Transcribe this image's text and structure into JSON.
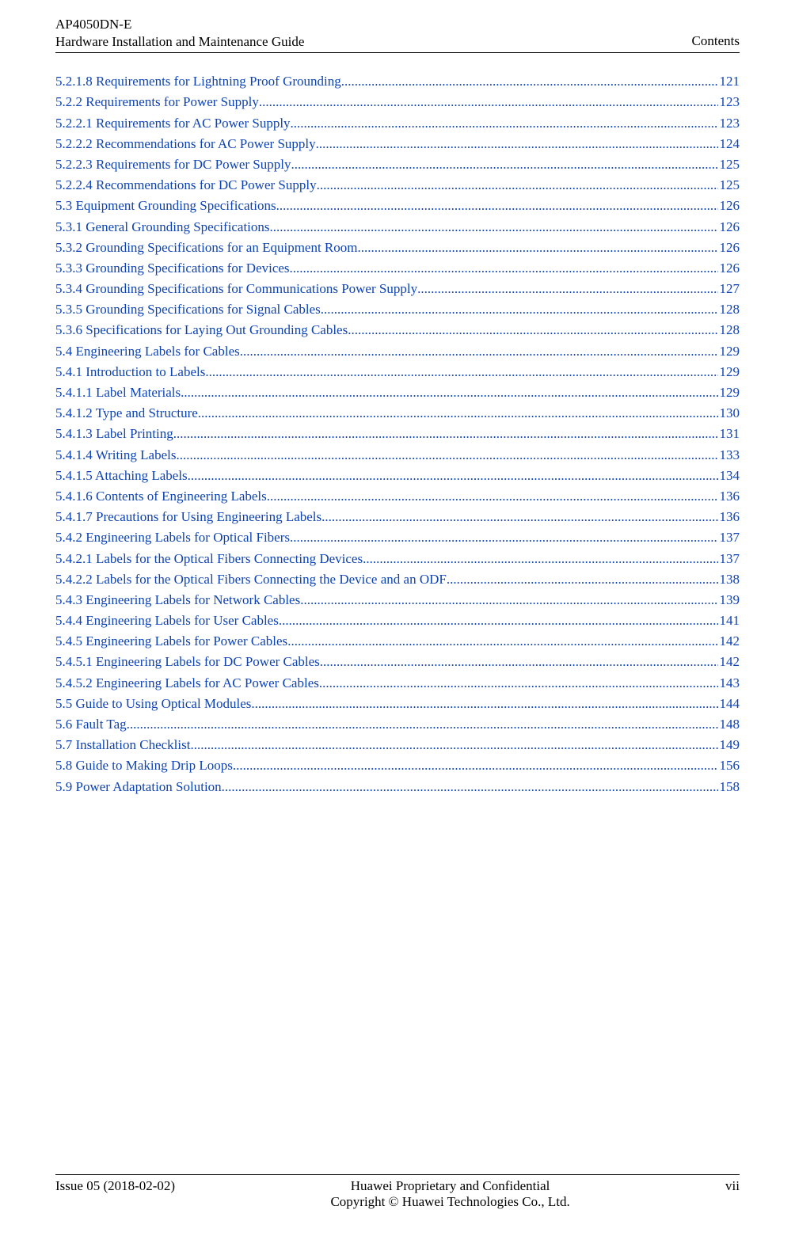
{
  "header": {
    "product": "AP4050DN-E",
    "doc_title": "Hardware Installation and Maintenance Guide",
    "section": "Contents"
  },
  "link_color": "#0e43b3",
  "toc": [
    {
      "title": "5.2.1.8 Requirements for Lightning Proof Grounding",
      "page": "121"
    },
    {
      "title": "5.2.2 Requirements for Power Supply",
      "page": "123"
    },
    {
      "title": "5.2.2.1 Requirements for AC Power Supply",
      "page": "123"
    },
    {
      "title": "5.2.2.2 Recommendations for AC Power Supply",
      "page": "124"
    },
    {
      "title": "5.2.2.3 Requirements for DC Power Supply",
      "page": "125"
    },
    {
      "title": "5.2.2.4 Recommendations for DC Power Supply",
      "page": "125"
    },
    {
      "title": "5.3 Equipment Grounding Specifications",
      "page": "126"
    },
    {
      "title": "5.3.1 General Grounding Specifications",
      "page": "126"
    },
    {
      "title": "5.3.2 Grounding Specifications for an Equipment Room",
      "page": "126"
    },
    {
      "title": "5.3.3 Grounding Specifications for Devices",
      "page": "126"
    },
    {
      "title": "5.3.4 Grounding Specifications for Communications Power Supply",
      "page": "127"
    },
    {
      "title": "5.3.5 Grounding Specifications for Signal Cables",
      "page": "128"
    },
    {
      "title": "5.3.6 Specifications for Laying Out Grounding Cables",
      "page": "128"
    },
    {
      "title": "5.4 Engineering Labels for Cables",
      "page": "129"
    },
    {
      "title": "5.4.1 Introduction to Labels",
      "page": "129"
    },
    {
      "title": "5.4.1.1 Label Materials",
      "page": "129"
    },
    {
      "title": "5.4.1.2 Type and Structure",
      "page": "130"
    },
    {
      "title": "5.4.1.3 Label Printing",
      "page": "131"
    },
    {
      "title": "5.4.1.4 Writing Labels",
      "page": "133"
    },
    {
      "title": "5.4.1.5 Attaching Labels",
      "page": "134"
    },
    {
      "title": "5.4.1.6 Contents of Engineering Labels",
      "page": "136"
    },
    {
      "title": "5.4.1.7 Precautions for Using Engineering Labels",
      "page": "136"
    },
    {
      "title": "5.4.2 Engineering Labels for Optical Fibers",
      "page": "137"
    },
    {
      "title": "5.4.2.1 Labels for the Optical Fibers Connecting Devices",
      "page": "137"
    },
    {
      "title": "5.4.2.2 Labels for the Optical Fibers Connecting the Device and an ODF",
      "page": "138"
    },
    {
      "title": "5.4.3 Engineering Labels for Network Cables",
      "page": "139"
    },
    {
      "title": "5.4.4 Engineering Labels for User Cables",
      "page": "141"
    },
    {
      "title": "5.4.5 Engineering Labels for Power Cables",
      "page": "142"
    },
    {
      "title": "5.4.5.1 Engineering Labels for DC Power Cables",
      "page": "142"
    },
    {
      "title": "5.4.5.2 Engineering Labels for AC Power Cables",
      "page": "143"
    },
    {
      "title": "5.5 Guide to Using Optical Modules",
      "page": "144"
    },
    {
      "title": "5.6 Fault Tag",
      "page": "148"
    },
    {
      "title": "5.7 Installation Checklist",
      "page": "149"
    },
    {
      "title": "5.8 Guide to Making Drip Loops",
      "page": "156"
    },
    {
      "title": "5.9 Power Adaptation Solution",
      "page": "158"
    }
  ],
  "footer": {
    "issue": "Issue 05 (2018-02-02)",
    "conf_line1": "Huawei Proprietary and Confidential",
    "conf_line2": "Copyright © Huawei Technologies Co., Ltd.",
    "page_label": "vii"
  }
}
